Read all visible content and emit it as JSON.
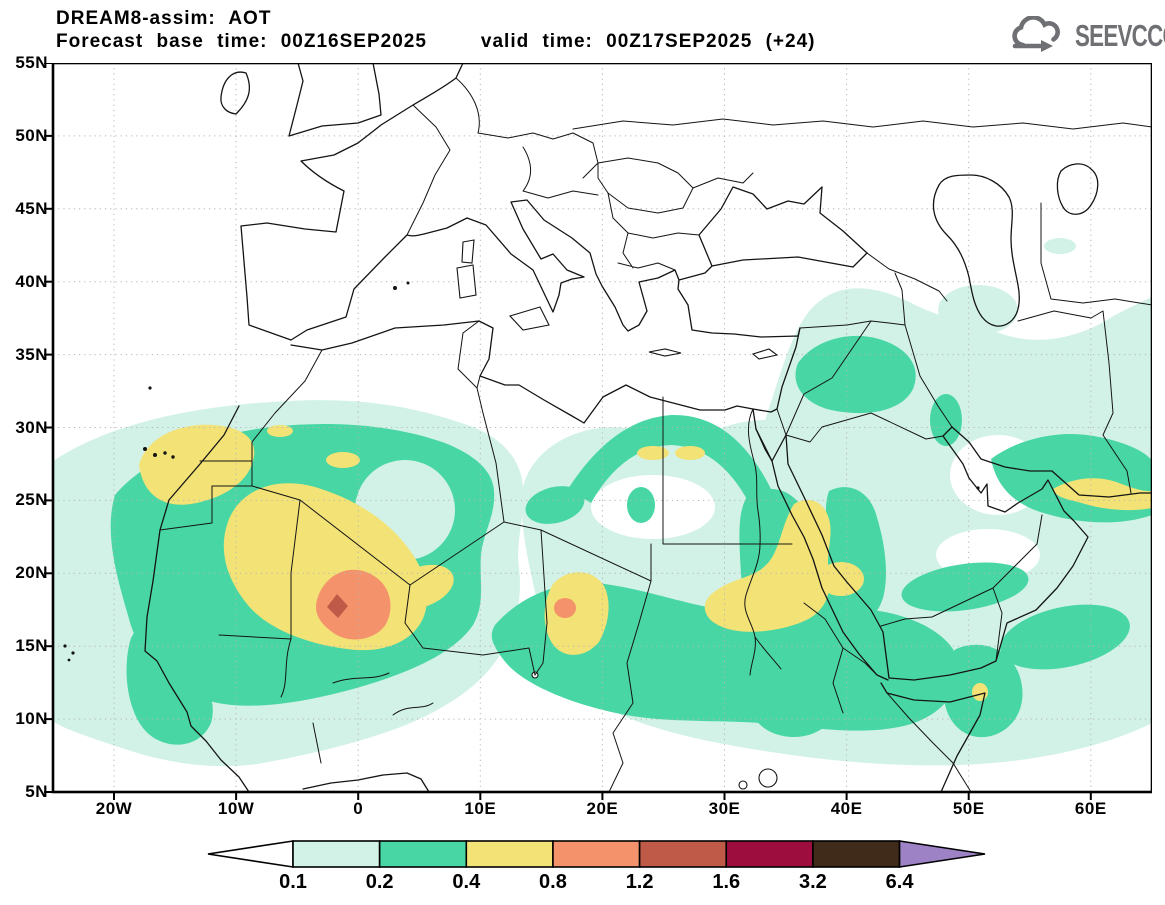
{
  "header": {
    "line1": "DREAM8-assim: AOT",
    "line2_left": "Forecast base time: 00Z16SEP2025",
    "line2_right": "valid time: 00Z17SEP2025 (+24)"
  },
  "logo": {
    "text": "SEEVCCC",
    "icon": "cloud-arrow-icon",
    "color": "#6f7073"
  },
  "axes": {
    "x_ticks": [
      "20W",
      "10W",
      "0",
      "10E",
      "20E",
      "30E",
      "40E",
      "50E",
      "60E"
    ],
    "y_ticks": [
      "55N",
      "50N",
      "45N",
      "40N",
      "35N",
      "30N",
      "25N",
      "20N",
      "15N",
      "10N",
      "5N"
    ]
  },
  "legend": {
    "values": [
      "0.1",
      "0.2",
      "0.4",
      "0.8",
      "1.2",
      "1.6",
      "3.2",
      "6.4"
    ],
    "cell_colors": [
      "#d2f2e8",
      "#48d7a4",
      "#f3e276",
      "#f4936b",
      "#bf5a49",
      "#9d0e3e",
      "#402a19"
    ],
    "left_arrow_color": "#ffffff",
    "right_arrow_color": "#9d82c6"
  },
  "chart_data": {
    "type": "heatmap",
    "title": "DREAM8-assim: AOT",
    "variable": "AOT",
    "forecast_base_time": "00Z16SEP2025",
    "valid_time": "00Z17SEP2025",
    "lead": "+24",
    "lon_ticks": [
      "20W",
      "10W",
      "0",
      "10E",
      "20E",
      "30E",
      "40E",
      "50E",
      "60E"
    ],
    "lat_ticks": [
      "55N",
      "50N",
      "45N",
      "40N",
      "35N",
      "30N",
      "25N",
      "20N",
      "15N",
      "10N",
      "5N"
    ],
    "contour_levels": [
      0.1,
      0.2,
      0.4,
      0.8,
      1.2,
      1.6,
      3.2,
      6.4
    ],
    "palette": [
      "#ffffff",
      "#d2f2e8",
      "#48d7a4",
      "#f3e276",
      "#f4936b",
      "#bf5a49",
      "#9d0e3e",
      "#402a19",
      "#9d82c6"
    ],
    "legend_position": "bottom"
  }
}
